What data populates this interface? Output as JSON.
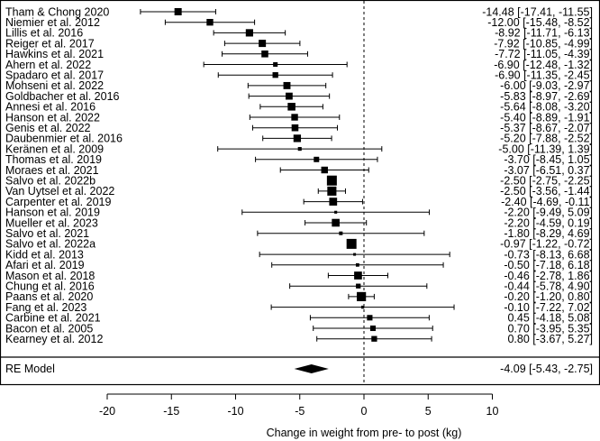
{
  "chart_data": {
    "type": "forest",
    "xlabel": "Change in weight from pre- to post (kg)",
    "xlim": [
      -20,
      10
    ],
    "xticks": [
      -20,
      -15,
      -10,
      -5,
      0,
      5,
      10
    ],
    "xtick_labels": [
      "-20",
      "-15",
      "-10",
      "-5",
      "0",
      "5",
      "10"
    ],
    "reference_line": 0,
    "studies": [
      {
        "label": "Tham & Chong 2020",
        "est": -14.48,
        "lo": -17.41,
        "hi": -11.55,
        "ci_text": "-14.48 [-17.41, -11.55]"
      },
      {
        "label": "Niemier et al. 2012",
        "est": -12.0,
        "lo": -15.48,
        "hi": -8.52,
        "ci_text": "-12.00 [-15.48, -8.52]"
      },
      {
        "label": "Lillis et al. 2016",
        "est": -8.92,
        "lo": -11.71,
        "hi": -6.13,
        "ci_text": "-8.92 [-11.71, -6.13]"
      },
      {
        "label": "Reiger et al. 2017",
        "est": -7.92,
        "lo": -10.85,
        "hi": -4.99,
        "ci_text": "-7.92 [-10.85, -4.99]"
      },
      {
        "label": "Hawkins et al. 2021",
        "est": -7.72,
        "lo": -11.05,
        "hi": -4.39,
        "ci_text": "-7.72 [-11.05, -4.39]"
      },
      {
        "label": "Ahern et al. 2022",
        "est": -6.9,
        "lo": -12.48,
        "hi": -1.32,
        "ci_text": "-6.90 [-12.48, -1.32]"
      },
      {
        "label": "Spadaro et al. 2017",
        "est": -6.9,
        "lo": -11.35,
        "hi": -2.45,
        "ci_text": "-6.90 [-11.35, -2.45]"
      },
      {
        "label": "Mohseni et al.  2022",
        "est": -6.0,
        "lo": -9.03,
        "hi": -2.97,
        "ci_text": "-6.00 [-9.03, -2.97]"
      },
      {
        "label": "Goldbacher et al. 2016",
        "est": -5.83,
        "lo": -8.97,
        "hi": -2.69,
        "ci_text": "-5.83 [-8.97, -2.69]"
      },
      {
        "label": "Annesi et al. 2016",
        "est": -5.64,
        "lo": -8.08,
        "hi": -3.2,
        "ci_text": "-5.64 [-8.08, -3.20]"
      },
      {
        "label": "Hanson et al. 2022",
        "est": -5.4,
        "lo": -8.89,
        "hi": -1.91,
        "ci_text": "-5.40 [-8.89, -1.91]"
      },
      {
        "label": "Genis et al. 2022",
        "est": -5.37,
        "lo": -8.67,
        "hi": -2.07,
        "ci_text": "-5.37 [-8.67, -2.07]"
      },
      {
        "label": "Daubenmier et al. 2016",
        "est": -5.2,
        "lo": -7.88,
        "hi": -2.52,
        "ci_text": "-5.20 [-7.88, -2.52]"
      },
      {
        "label": "Keränen et al. 2009",
        "est": -5.0,
        "lo": -11.39,
        "hi": 1.39,
        "ci_text": "-5.00 [-11.39, 1.39]"
      },
      {
        "label": "Thomas et al. 2019",
        "est": -3.7,
        "lo": -8.45,
        "hi": 1.05,
        "ci_text": "-3.70 [-8.45, 1.05]"
      },
      {
        "label": "Moraes et al. 2021",
        "est": -3.07,
        "lo": -6.51,
        "hi": 0.37,
        "ci_text": "-3.07 [-6.51, 0.37]"
      },
      {
        "label": "Salvo et al. 2022b",
        "est": -2.5,
        "lo": -2.75,
        "hi": -2.25,
        "ci_text": "-2.50 [-2.75, -2.25]"
      },
      {
        "label": "Van Uytsel et al. 2022",
        "est": -2.5,
        "lo": -3.56,
        "hi": -1.44,
        "ci_text": "-2.50 [-3.56, -1.44]"
      },
      {
        "label": "Carpenter et al. 2019",
        "est": -2.4,
        "lo": -4.69,
        "hi": -0.11,
        "ci_text": "-2.40 [-4.69, -0.11]"
      },
      {
        "label": "Hanson et al. 2019",
        "est": -2.2,
        "lo": -9.49,
        "hi": 5.09,
        "ci_text": "-2.20 [-9.49, 5.09]"
      },
      {
        "label": "Mueller et al. 2023",
        "est": -2.2,
        "lo": -4.59,
        "hi": 0.19,
        "ci_text": "-2.20 [-4.59, 0.19]"
      },
      {
        "label": "Salvo et al. 2021",
        "est": -1.8,
        "lo": -8.29,
        "hi": 4.69,
        "ci_text": "-1.80 [-8.29, 4.69]"
      },
      {
        "label": "Salvo et al. 2022a",
        "est": -0.97,
        "lo": -1.22,
        "hi": -0.72,
        "ci_text": "-0.97 [-1.22, -0.72]"
      },
      {
        "label": "Kidd et al. 2013",
        "est": -0.73,
        "lo": -8.13,
        "hi": 6.68,
        "ci_text": "-0.73 [-8.13, 6.68]"
      },
      {
        "label": "Afari et al. 2019",
        "est": -0.5,
        "lo": -7.18,
        "hi": 6.18,
        "ci_text": "-0.50 [-7.18, 6.18]"
      },
      {
        "label": "Mason et al. 2018",
        "est": -0.46,
        "lo": -2.78,
        "hi": 1.86,
        "ci_text": "-0.46 [-2.78, 1.86]"
      },
      {
        "label": "Chung et al. 2016",
        "est": -0.44,
        "lo": -5.78,
        "hi": 4.9,
        "ci_text": "-0.44 [-5.78, 4.90]"
      },
      {
        "label": "Paans et al. 2020",
        "est": -0.2,
        "lo": -1.2,
        "hi": 0.8,
        "ci_text": "-0.20 [-1.20, 0.80]"
      },
      {
        "label": "Fang et al. 2023",
        "est": -0.1,
        "lo": -7.22,
        "hi": 7.02,
        "ci_text": "-0.10 [-7.22, 7.02]"
      },
      {
        "label": "Carbine et al. 2021",
        "est": 0.45,
        "lo": -4.18,
        "hi": 5.08,
        "ci_text": "0.45 [-4.18, 5.08]"
      },
      {
        "label": "Bacon et al. 2005",
        "est": 0.7,
        "lo": -3.95,
        "hi": 5.35,
        "ci_text": "0.70 [-3.95, 5.35]"
      },
      {
        "label": "Kearney et al. 2012",
        "est": 0.8,
        "lo": -3.67,
        "hi": 5.27,
        "ci_text": "0.80 [-3.67, 5.27]"
      }
    ],
    "summary": {
      "label": "RE Model",
      "est": -4.09,
      "lo": -5.43,
      "hi": -2.75,
      "ci_text": "-4.09 [-5.43, -2.75]"
    }
  }
}
